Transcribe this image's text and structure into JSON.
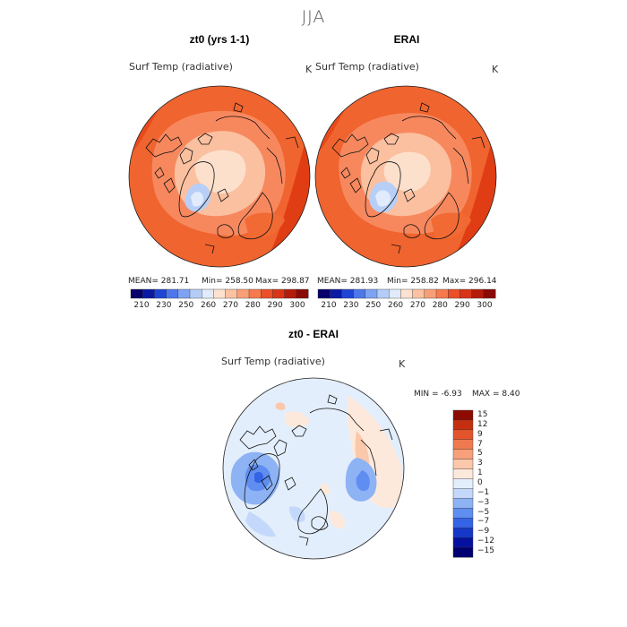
{
  "figure": {
    "season": "JJA",
    "colors": {
      "warm_scale": [
        "#08006b",
        "#0a1aa3",
        "#1f45d4",
        "#4d77eb",
        "#7ea3f3",
        "#b4cdf7",
        "#e1ebfb",
        "#fde2cf",
        "#fcc2a1",
        "#f99f76",
        "#f57a4e",
        "#eb5028",
        "#d83518",
        "#b51b0b",
        "#8a0b05"
      ],
      "diff_scale": [
        "#000070",
        "#0512a0",
        "#1638c8",
        "#3563e6",
        "#5f8ef0",
        "#8db3f5",
        "#c3d8fa",
        "#e3eefc",
        "#fde9dc",
        "#fbc8ab",
        "#f7a07a",
        "#f07a50",
        "#e4542b",
        "#c52f10",
        "#8c0a00"
      ]
    },
    "panels": {
      "model": {
        "title": "zt0 (yrs 1-1)",
        "variable": "Surf Temp (radiative)",
        "units": "K",
        "stats": {
          "mean_label": "MEAN=",
          "mean": "281.71",
          "min_label": "Min=",
          "min": "258.50",
          "max_label": "Max=",
          "max": "298.87"
        }
      },
      "erai": {
        "title": "ERAI",
        "variable": "Surf Temp (radiative)",
        "units": "K",
        "stats": {
          "mean_label": "MEAN=",
          "mean": "281.93",
          "min_label": "Min=",
          "min": "258.82",
          "max_label": "Max=",
          "max": "296.14"
        }
      },
      "diff": {
        "title": "zt0 - ERAI",
        "variable": "Surf Temp (radiative)",
        "units": "K",
        "stats": {
          "min_label": "MIN =",
          "min": "-6.93",
          "max_label": "MAX =",
          "max": "8.40"
        }
      }
    },
    "colorbar_labels": [
      "210",
      "230",
      "250",
      "260",
      "270",
      "280",
      "290",
      "300"
    ],
    "diff_colorbar_labels": [
      "15",
      "12",
      "9",
      "7",
      "5",
      "3",
      "1",
      "0",
      "−1",
      "−3",
      "−5",
      "−7",
      "−9",
      "−12",
      "−15"
    ]
  }
}
